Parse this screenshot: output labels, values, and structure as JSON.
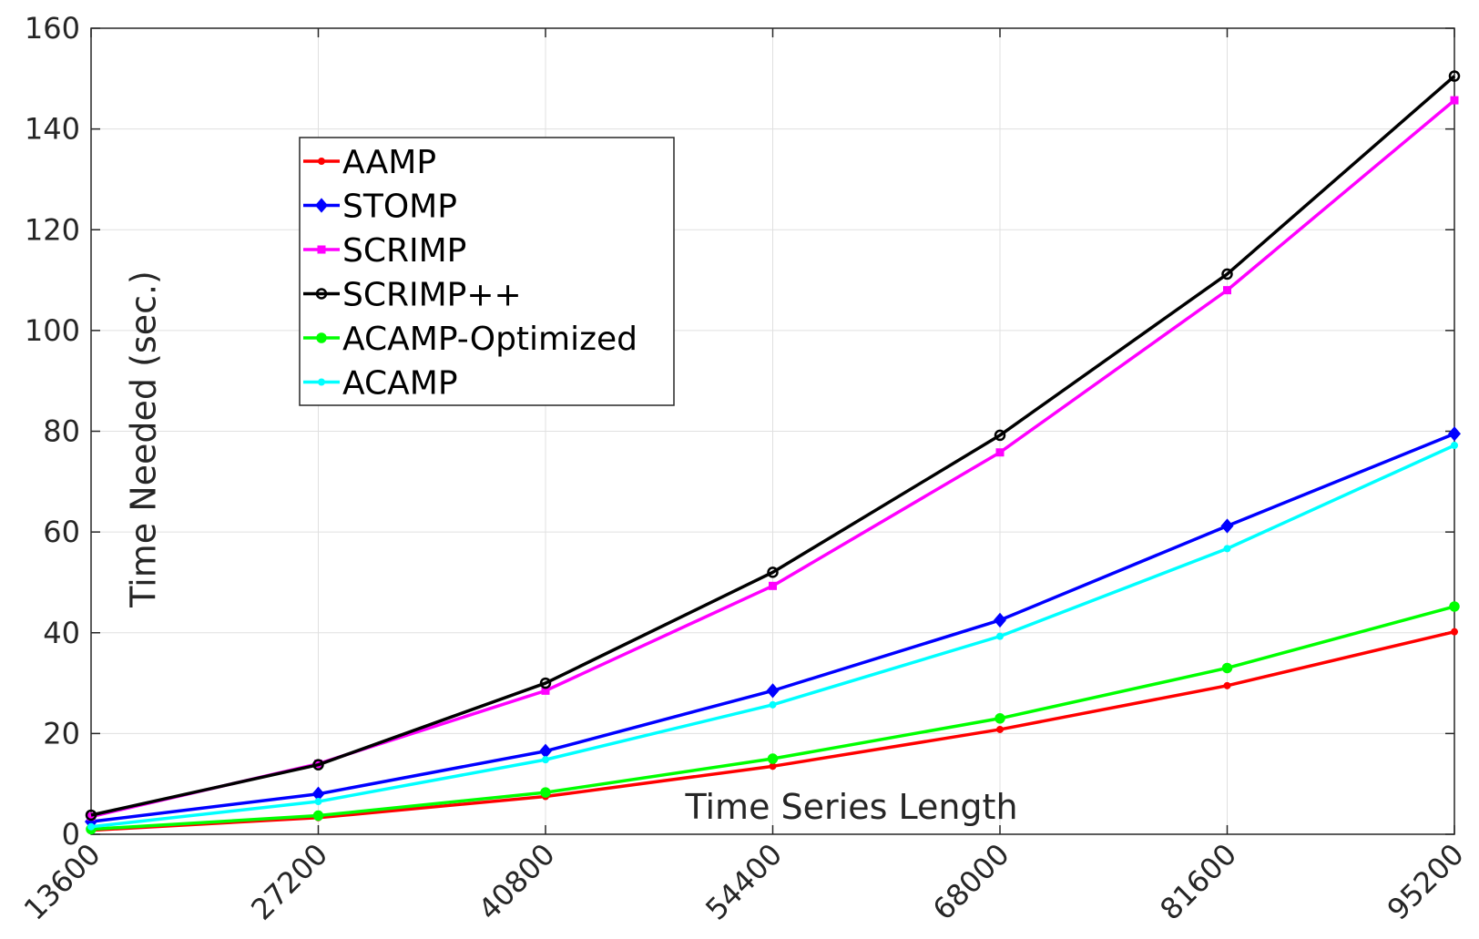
{
  "chart_data": {
    "type": "line",
    "title": "",
    "xlabel": "Time Series Length",
    "ylabel": "Time Needed (sec.)",
    "x": [
      13600,
      27200,
      40800,
      54400,
      68000,
      81600,
      95200
    ],
    "x_tick_labels": [
      "13600",
      "27200",
      "40800",
      "54400",
      "68000",
      "81600",
      "95200"
    ],
    "ylim": [
      0,
      160
    ],
    "y_ticks": [
      0,
      20,
      40,
      60,
      80,
      100,
      120,
      140,
      160
    ],
    "grid": true,
    "legend_position": "top-left",
    "series": [
      {
        "name": "AAMP",
        "color": "#ff0000",
        "marker": "dot-small",
        "values": [
          0.8,
          3.3,
          7.5,
          13.5,
          20.8,
          29.5,
          40.2
        ]
      },
      {
        "name": "STOMP",
        "color": "#0000ff",
        "marker": "diamond",
        "values": [
          2.5,
          8.0,
          16.5,
          28.5,
          42.5,
          61.2,
          79.5
        ]
      },
      {
        "name": "SCRIMP",
        "color": "#ff00ff",
        "marker": "square",
        "values": [
          3.5,
          14.0,
          28.5,
          49.3,
          75.8,
          108.0,
          145.7
        ]
      },
      {
        "name": "SCRIMP++",
        "color": "#000000",
        "marker": "circle",
        "values": [
          3.8,
          13.8,
          30.0,
          52.0,
          79.2,
          111.2,
          150.5
        ]
      },
      {
        "name": "ACAMP-Optimized",
        "color": "#00ff00",
        "marker": "circle-filled",
        "values": [
          1.0,
          3.7,
          8.3,
          15.0,
          23.0,
          33.0,
          45.2
        ]
      },
      {
        "name": "ACAMP",
        "color": "#00ffff",
        "marker": "dot-small",
        "values": [
          1.5,
          6.5,
          14.8,
          25.7,
          39.3,
          56.7,
          77.2
        ]
      }
    ]
  }
}
